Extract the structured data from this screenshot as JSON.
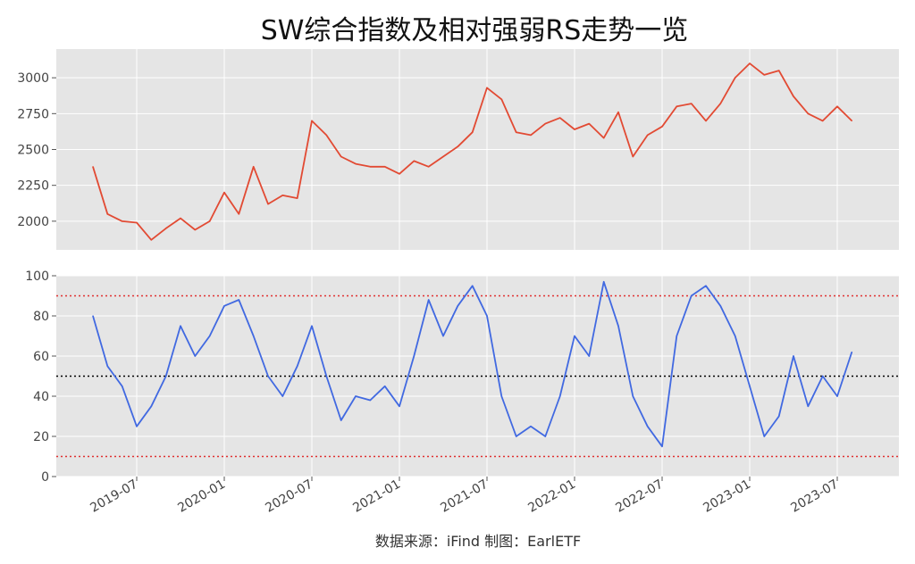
{
  "chart_data": {
    "title": "SW综合指数及相对强弱RS走势一览",
    "source_note": "数据来源：iFind 制图：EarlETF",
    "x_ticks": [
      "2019-07",
      "2020-01",
      "2020-07",
      "2021-01",
      "2021-07",
      "2022-01",
      "2022-07",
      "2023-01",
      "2023-07"
    ],
    "panels": [
      {
        "type": "line",
        "series": [
          {
            "color": "#e24a33",
            "x": [
              "2019-04",
              "2019-05",
              "2019-06",
              "2019-07",
              "2019-08",
              "2019-09",
              "2019-10",
              "2019-11",
              "2019-12",
              "2020-01",
              "2020-02",
              "2020-03",
              "2020-04",
              "2020-05",
              "2020-06",
              "2020-07",
              "2020-08",
              "2020-09",
              "2020-10",
              "2020-11",
              "2020-12",
              "2021-01",
              "2021-02",
              "2021-03",
              "2021-04",
              "2021-05",
              "2021-06",
              "2021-07",
              "2021-08",
              "2021-09",
              "2021-10",
              "2021-11",
              "2021-12",
              "2022-01",
              "2022-02",
              "2022-03",
              "2022-04",
              "2022-05",
              "2022-06",
              "2022-07",
              "2022-08",
              "2022-09",
              "2022-10",
              "2022-11",
              "2022-12",
              "2023-01",
              "2023-02",
              "2023-03",
              "2023-04",
              "2023-05",
              "2023-06",
              "2023-07",
              "2023-08"
            ],
            "values": [
              2380,
              2050,
              2000,
              1990,
              1870,
              1950,
              2020,
              1940,
              2000,
              2200,
              2050,
              2380,
              2120,
              2180,
              2160,
              2700,
              2600,
              2450,
              2400,
              2380,
              2380,
              2330,
              2420,
              2380,
              2450,
              2520,
              2620,
              2930,
              2850,
              2620,
              2600,
              2680,
              2720,
              2640,
              2680,
              2580,
              2760,
              2450,
              2600,
              2660,
              2800,
              2820,
              2700,
              2820,
              3000,
              3100,
              3020,
              3050,
              2870,
              2750,
              2700,
              2800,
              2700
            ]
          }
        ],
        "ylim": [
          1800,
          3200
        ],
        "yticks": [
          2000,
          2250,
          2500,
          2750,
          3000
        ]
      },
      {
        "type": "line",
        "series": [
          {
            "color": "#4169e1",
            "x": [
              "2019-04",
              "2019-05",
              "2019-06",
              "2019-07",
              "2019-08",
              "2019-09",
              "2019-10",
              "2019-11",
              "2019-12",
              "2020-01",
              "2020-02",
              "2020-03",
              "2020-04",
              "2020-05",
              "2020-06",
              "2020-07",
              "2020-08",
              "2020-09",
              "2020-10",
              "2020-11",
              "2020-12",
              "2021-01",
              "2021-02",
              "2021-03",
              "2021-04",
              "2021-05",
              "2021-06",
              "2021-07",
              "2021-08",
              "2021-09",
              "2021-10",
              "2021-11",
              "2021-12",
              "2022-01",
              "2022-02",
              "2022-03",
              "2022-04",
              "2022-05",
              "2022-06",
              "2022-07",
              "2022-08",
              "2022-09",
              "2022-10",
              "2022-11",
              "2022-12",
              "2023-01",
              "2023-02",
              "2023-03",
              "2023-04",
              "2023-05",
              "2023-06",
              "2023-07",
              "2023-08"
            ],
            "values": [
              80,
              55,
              45,
              25,
              35,
              50,
              75,
              60,
              70,
              85,
              88,
              70,
              50,
              40,
              55,
              75,
              50,
              28,
              40,
              38,
              45,
              35,
              60,
              88,
              70,
              85,
              95,
              80,
              40,
              20,
              25,
              20,
              40,
              70,
              60,
              97,
              75,
              40,
              25,
              15,
              70,
              90,
              95,
              85,
              70,
              45,
              20,
              30,
              60,
              35,
              50,
              40,
              62
            ]
          }
        ],
        "ylim": [
          0,
          100
        ],
        "yticks": [
          0,
          20,
          40,
          60,
          80,
          100
        ],
        "reference_lines": [
          {
            "value": 90,
            "color": "#e03030"
          },
          {
            "value": 50,
            "color": "#000000"
          },
          {
            "value": 10,
            "color": "#e03030"
          }
        ]
      }
    ],
    "background": "#e5e5e5",
    "grid": true
  }
}
